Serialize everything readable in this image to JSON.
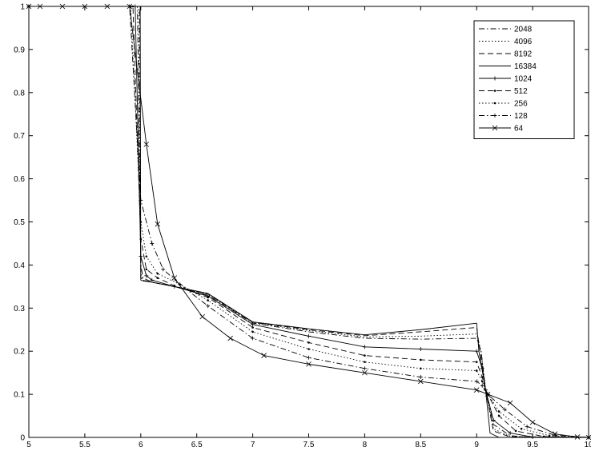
{
  "chart_data": {
    "type": "line",
    "title": "",
    "xlabel": "",
    "ylabel": "",
    "xlim": [
      5,
      10
    ],
    "ylim": [
      0,
      1
    ],
    "x_ticks": [
      "5",
      "5.5",
      "6",
      "6.5",
      "7",
      "7.5",
      "8",
      "8.5",
      "9",
      "9.5",
      "10"
    ],
    "y_ticks": [
      "0",
      "0.1",
      "0.2",
      "0.3",
      "0.4",
      "0.5",
      "0.6",
      "0.7",
      "0.8",
      "0.9",
      "1"
    ],
    "grid": false,
    "legend_position": "top-right",
    "series": [
      {
        "name": "2048",
        "dash": "dashdot",
        "marker": "none",
        "x": [
          5,
          5.97,
          6.0,
          6.02,
          6.1,
          6.3,
          6.6,
          7.0,
          7.5,
          8.0,
          8.5,
          9.0,
          9.04,
          9.08,
          9.15,
          9.3,
          9.5,
          10
        ],
        "y": [
          1,
          1,
          0.4,
          0.37,
          0.36,
          0.35,
          0.33,
          0.265,
          0.245,
          0.23,
          0.228,
          0.23,
          0.2,
          0.11,
          0.03,
          0.004,
          0.0,
          0
        ]
      },
      {
        "name": "4096",
        "dash": "dotted",
        "marker": "none",
        "x": [
          5,
          5.98,
          6.0,
          6.02,
          6.1,
          6.3,
          6.6,
          7.0,
          7.5,
          8.0,
          8.5,
          9.0,
          9.04,
          9.08,
          9.15,
          9.3,
          10
        ],
        "y": [
          1,
          1,
          0.38,
          0.365,
          0.36,
          0.35,
          0.332,
          0.266,
          0.248,
          0.233,
          0.235,
          0.24,
          0.2,
          0.11,
          0.02,
          0.002,
          0
        ]
      },
      {
        "name": "8192",
        "dash": "dashed",
        "marker": "none",
        "x": [
          5,
          5.99,
          6.0,
          6.02,
          6.1,
          6.3,
          6.6,
          7.0,
          7.5,
          8.0,
          8.5,
          9.0,
          9.03,
          9.08,
          9.15,
          9.3,
          10
        ],
        "y": [
          1,
          1,
          0.37,
          0.365,
          0.36,
          0.35,
          0.333,
          0.267,
          0.25,
          0.236,
          0.245,
          0.255,
          0.2,
          0.11,
          0.015,
          0.001,
          0
        ]
      },
      {
        "name": "16384",
        "dash": "solid",
        "marker": "none",
        "x": [
          5,
          5.995,
          6.0,
          6.02,
          6.1,
          6.3,
          6.6,
          7.0,
          7.5,
          8.0,
          8.5,
          9.0,
          9.02,
          9.08,
          9.12,
          9.2,
          10
        ],
        "y": [
          1,
          1,
          0.365,
          0.363,
          0.36,
          0.35,
          0.334,
          0.268,
          0.252,
          0.238,
          0.25,
          0.265,
          0.2,
          0.11,
          0.01,
          0.0,
          0
        ]
      },
      {
        "name": "1024",
        "dash": "solid",
        "marker": "plus",
        "x": [
          5,
          5.95,
          6.0,
          6.05,
          6.1,
          6.3,
          6.6,
          7.0,
          7.5,
          8.0,
          8.5,
          9.0,
          9.05,
          9.08,
          9.15,
          9.3,
          9.5,
          10
        ],
        "y": [
          1,
          1,
          0.42,
          0.375,
          0.365,
          0.35,
          0.328,
          0.262,
          0.235,
          0.21,
          0.205,
          0.2,
          0.16,
          0.11,
          0.04,
          0.01,
          0.001,
          0
        ]
      },
      {
        "name": "512",
        "dash": "dashed",
        "marker": "dot",
        "x": [
          5,
          5.93,
          6.0,
          6.05,
          6.15,
          6.3,
          6.6,
          7.0,
          7.5,
          8.0,
          8.5,
          9.0,
          9.05,
          9.08,
          9.2,
          9.35,
          9.6,
          10
        ],
        "y": [
          1,
          1,
          0.46,
          0.39,
          0.37,
          0.352,
          0.325,
          0.255,
          0.22,
          0.19,
          0.18,
          0.175,
          0.14,
          0.11,
          0.05,
          0.015,
          0.002,
          0
        ]
      },
      {
        "name": "256",
        "dash": "dotted",
        "marker": "dot",
        "x": [
          5,
          5.91,
          6.0,
          6.05,
          6.15,
          6.35,
          6.6,
          7.0,
          7.5,
          8.0,
          8.5,
          9.0,
          9.05,
          9.08,
          9.2,
          9.4,
          9.65,
          10
        ],
        "y": [
          1,
          1,
          0.5,
          0.42,
          0.38,
          0.355,
          0.318,
          0.245,
          0.205,
          0.175,
          0.16,
          0.155,
          0.13,
          0.11,
          0.06,
          0.02,
          0.004,
          0
        ]
      },
      {
        "name": "128",
        "dash": "dashdot",
        "marker": "plus",
        "x": [
          5,
          5.9,
          6.0,
          6.1,
          6.2,
          6.35,
          6.6,
          7.0,
          7.5,
          8.0,
          8.5,
          9.0,
          9.05,
          9.1,
          9.25,
          9.45,
          9.7,
          10
        ],
        "y": [
          1,
          1,
          0.55,
          0.45,
          0.39,
          0.355,
          0.305,
          0.23,
          0.185,
          0.16,
          0.14,
          0.13,
          0.12,
          0.1,
          0.065,
          0.025,
          0.005,
          0
        ]
      },
      {
        "name": "64",
        "dash": "solid",
        "marker": "x",
        "x": [
          5,
          5.1,
          5.3,
          5.5,
          5.7,
          5.9,
          6.05,
          6.15,
          6.3,
          6.55,
          6.8,
          7.1,
          7.5,
          8.0,
          8.5,
          9.0,
          9.1,
          9.3,
          9.5,
          9.7,
          9.9,
          10
        ],
        "y": [
          1,
          1,
          1,
          1,
          1,
          1,
          0.68,
          0.495,
          0.37,
          0.28,
          0.23,
          0.19,
          0.17,
          0.15,
          0.13,
          0.11,
          0.1,
          0.08,
          0.035,
          0.008,
          0.001,
          0
        ]
      }
    ]
  }
}
